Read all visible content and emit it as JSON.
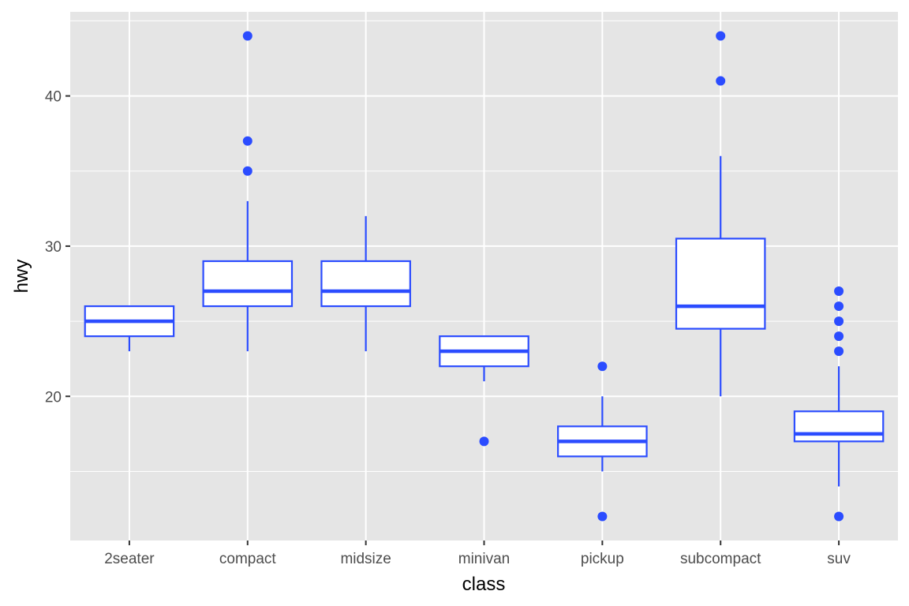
{
  "chart_data": {
    "type": "boxplot",
    "xlabel": "class",
    "ylabel": "hwy",
    "categories": [
      "2seater",
      "compact",
      "midsize",
      "minivan",
      "pickup",
      "subcompact",
      "suv"
    ],
    "boxes": [
      {
        "category": "2seater",
        "whisker_low": 23,
        "q1": 24,
        "median": 25,
        "q3": 26,
        "whisker_high": 26,
        "outliers": []
      },
      {
        "category": "compact",
        "whisker_low": 23,
        "q1": 26,
        "median": 27,
        "q3": 29,
        "whisker_high": 33,
        "outliers": [
          35,
          37,
          44
        ]
      },
      {
        "category": "midsize",
        "whisker_low": 23,
        "q1": 26,
        "median": 27,
        "q3": 29,
        "whisker_high": 32,
        "outliers": []
      },
      {
        "category": "minivan",
        "whisker_low": 21,
        "q1": 22,
        "median": 23,
        "q3": 24,
        "whisker_high": 24,
        "outliers": [
          17
        ]
      },
      {
        "category": "pickup",
        "whisker_low": 15,
        "q1": 16,
        "median": 17,
        "q3": 18,
        "whisker_high": 20,
        "outliers": [
          12,
          22
        ]
      },
      {
        "category": "subcompact",
        "whisker_low": 20,
        "q1": 24.5,
        "median": 26,
        "q3": 30.5,
        "whisker_high": 36,
        "outliers": [
          41,
          44
        ]
      },
      {
        "category": "suv",
        "whisker_low": 14,
        "q1": 17,
        "median": 17.5,
        "q3": 19,
        "whisker_high": 22,
        "outliers": [
          12,
          23,
          24,
          25,
          26,
          27
        ]
      }
    ],
    "ylim": [
      10.4,
      45.6
    ],
    "y_major_ticks": [
      20,
      30,
      40
    ],
    "y_minor_ticks": [
      15,
      25,
      35,
      45
    ],
    "grid": true,
    "colors": {
      "panel_background": "#e5e5e5",
      "grid": "#ffffff",
      "box_stroke": "#2b4cff",
      "box_fill": "#ffffff",
      "outlier": "#2b4cff",
      "tick_text": "#4d4d4d",
      "axis_title": "#000000"
    }
  }
}
